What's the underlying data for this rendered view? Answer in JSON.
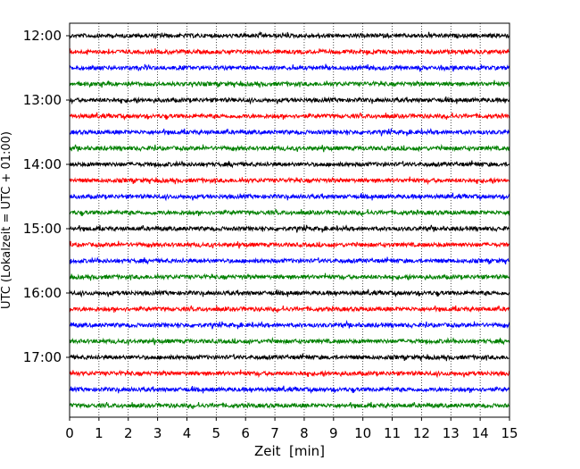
{
  "chart_data": {
    "type": "line",
    "title": "",
    "xlabel": "Zeit  [min]",
    "ylabel": "UTC (Lokalzeit = UTC + 01:00)",
    "xlim": [
      0,
      15
    ],
    "x_ticks": [
      "0",
      "1",
      "2",
      "3",
      "4",
      "5",
      "6",
      "7",
      "8",
      "9",
      "10",
      "11",
      "12",
      "13",
      "14",
      "15"
    ],
    "y_ticks": [
      "12:00",
      "13:00",
      "14:00",
      "15:00",
      "16:00",
      "17:00"
    ],
    "trace_start_times": [
      "12:00",
      "12:15",
      "12:30",
      "12:45",
      "13:00",
      "13:15",
      "13:30",
      "13:45",
      "14:00",
      "14:15",
      "14:30",
      "14:45",
      "15:00",
      "15:15",
      "15:30",
      "15:45",
      "16:00",
      "16:15",
      "16:30",
      "16:45",
      "17:00",
      "17:15",
      "17:30",
      "17:45"
    ],
    "trace_colors": [
      "#000000",
      "#ff0000",
      "#0000ff",
      "#008000"
    ],
    "grid": "vertical dotted",
    "legend": "none"
  }
}
